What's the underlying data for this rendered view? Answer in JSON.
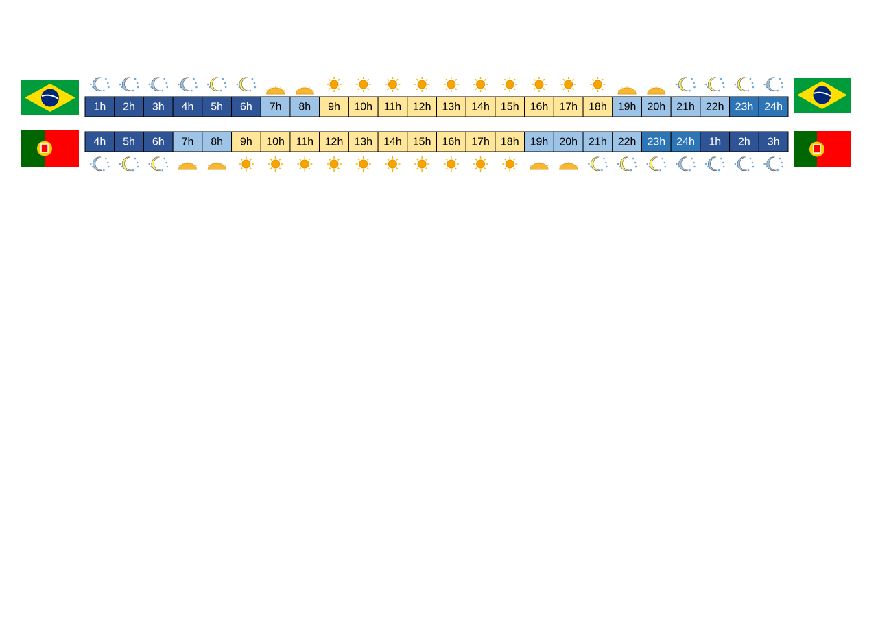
{
  "timelines": [
    {
      "hours": [
        "1h",
        "2h",
        "3h",
        "4h",
        "5h",
        "6h",
        "7h",
        "8h",
        "9h",
        "10h",
        "11h",
        "12h",
        "13h",
        "14h",
        "15h",
        "16h",
        "17h",
        "18h",
        "19h",
        "20h",
        "21h",
        "22h",
        "23h",
        "24h"
      ]
    },
    {
      "hours": [
        "4h",
        "5h",
        "6h",
        "7h",
        "8h",
        "9h",
        "10h",
        "11h",
        "12h",
        "13h",
        "14h",
        "15h",
        "16h",
        "17h",
        "18h",
        "19h",
        "20h",
        "21h",
        "22h",
        "23h",
        "24h",
        "1h",
        "2h",
        "3h"
      ]
    }
  ]
}
